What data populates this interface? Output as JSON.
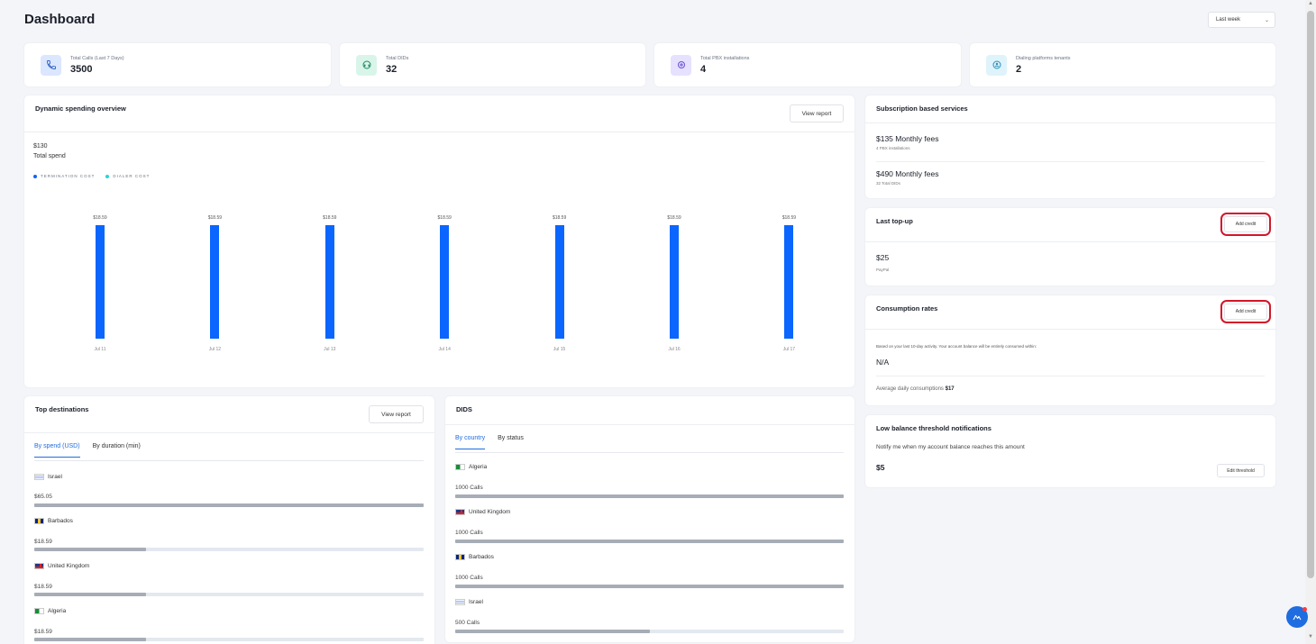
{
  "page": {
    "title": "Dashboard",
    "period": "Last week"
  },
  "stats": [
    {
      "label": "Total Calls (Last 7 Days)",
      "value": "3500",
      "icon": "phone-icon",
      "color": "#dbe6ff"
    },
    {
      "label": "Total DIDs",
      "value": "32",
      "icon": "headset-icon",
      "color": "#d9f5ea"
    },
    {
      "label": "Total PBX installations",
      "value": "4",
      "icon": "pbx-icon",
      "color": "#e6e1ff"
    },
    {
      "label": "Dialing platforms tenants",
      "value": "2",
      "icon": "tenant-icon",
      "color": "#dff3fb"
    }
  ],
  "spending": {
    "title": "Dynamic spending overview",
    "button": "View report",
    "total": "$130",
    "total_label": "Total spend",
    "legend": [
      {
        "name": "TERMINATION COST",
        "color": "#0a66ff"
      },
      {
        "name": "DIALER COST",
        "color": "#2ad4d4"
      }
    ]
  },
  "chart_data": {
    "type": "bar",
    "categories": [
      "Jul 11",
      "Jul 12",
      "Jul 13",
      "Jul 14",
      "Jul 15",
      "Jul 16",
      "Jul 17"
    ],
    "series": [
      {
        "name": "TERMINATION COST",
        "values": [
          18.59,
          18.59,
          18.59,
          18.59,
          18.59,
          18.59,
          18.59
        ]
      }
    ],
    "data_labels": [
      "$18.59",
      "$18.59",
      "$18.59",
      "$18.59",
      "$18.59",
      "$18.59",
      "$18.59"
    ],
    "title": "Dynamic spending overview",
    "legend": [
      "TERMINATION COST",
      "DIALER COST"
    ],
    "legend_position": "top-left",
    "grid": false
  },
  "subscription": {
    "title": "Subscription based services",
    "items": [
      {
        "amount": "$135 Monthly fees",
        "sub": "4 PBX installations"
      },
      {
        "amount": "$490 Monthly fees",
        "sub": "32 Total DIDs"
      }
    ]
  },
  "topup": {
    "title": "Last top-up",
    "button": "Add credit",
    "amount": "$25",
    "method": "PayPal"
  },
  "consumption": {
    "title": "Consumption rates",
    "button": "Add credit",
    "note": "Based on your last 10-day activity. Your account balance will be entirely consumed within:",
    "value": "N/A",
    "avg_label": "Average daily consumptions",
    "avg_value": "$17"
  },
  "lowbalance": {
    "title": "Low balance threshold notifications",
    "desc": "Notify me when my account balance reaches this amount",
    "value": "$5",
    "button": "Edit threshold"
  },
  "destinations": {
    "title": "Top destinations",
    "button": "View report",
    "tabs": [
      "By spend (USD)",
      "By duration (min)"
    ],
    "rows": [
      {
        "country": "Israel",
        "value": "$65.05",
        "fill": 1.0
      },
      {
        "country": "Barbados",
        "value": "$18.59",
        "fill": 0.286
      },
      {
        "country": "United Kingdom",
        "value": "$18.59",
        "fill": 0.286
      },
      {
        "country": "Algeria",
        "value": "$18.59",
        "fill": 0.286
      }
    ]
  },
  "dids": {
    "title": "DIDS",
    "tabs": [
      "By country",
      "By status"
    ],
    "rows": [
      {
        "country": "Algeria",
        "value": "1000 Calls",
        "fill": 1.0
      },
      {
        "country": "United Kingdom",
        "value": "1000 Calls",
        "fill": 1.0
      },
      {
        "country": "Barbados",
        "value": "1000 Calls",
        "fill": 1.0
      },
      {
        "country": "Israel",
        "value": "500 Calls",
        "fill": 0.5
      }
    ]
  }
}
